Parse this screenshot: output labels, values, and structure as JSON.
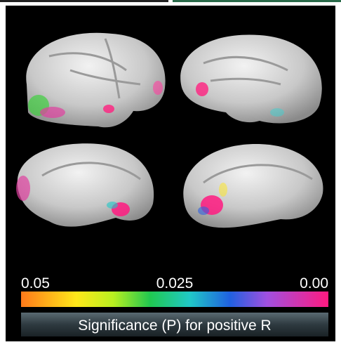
{
  "colorbar": {
    "label": "Significance (P) for positive R",
    "range": [
      0.05,
      0
    ],
    "ticks": [
      0.05,
      0.025,
      {
        "value": 0,
        "label": "0.00"
      }
    ]
  }
}
